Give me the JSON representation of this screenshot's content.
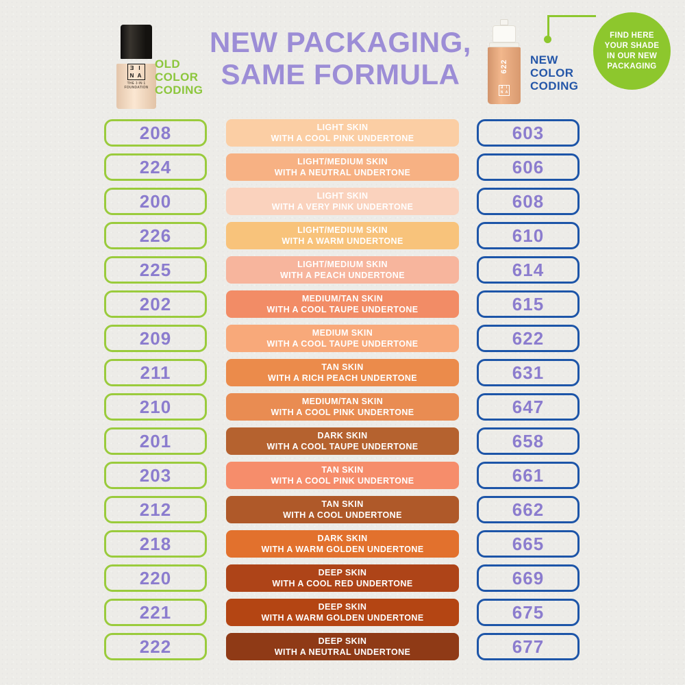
{
  "header": {
    "title_line1": "NEW PACKAGING,",
    "title_line2": "SAME FORMULA",
    "title_color": "#9C8DD6",
    "old_label_line1": "OLD",
    "old_label_line2": "COLOR",
    "old_label_line3": "CODING",
    "old_label_color": "#8CC63C",
    "new_label_line1": "NEW",
    "new_label_line2": "COLOR",
    "new_label_line3": "CODING",
    "new_label_color": "#2456A8",
    "badge": {
      "line1": "FIND HERE",
      "line2": "YOUR SHADE",
      "line3": "IN OUR NEW",
      "line4": "PACKAGING",
      "background": "#8DC72D",
      "text_color": "#FFFFFF"
    },
    "old_bottle": {
      "brand": "3INA",
      "logo_cells": {
        "a": "Ǝ",
        "b": "I",
        "c": "N",
        "d": "A"
      },
      "label_line1": "THE 3 IN 1",
      "label_line2": "FOUNDATION"
    },
    "new_bottle": {
      "brand": "3INA",
      "shade": "622",
      "logo_cells": {
        "a": "Ǝ",
        "b": "I",
        "c": "N",
        "d": "A"
      }
    }
  },
  "table": {
    "old_code_border_color": "#9ACB3C",
    "new_code_border_color": "#1D55A8",
    "code_text_color": "#8B7CCE",
    "rows": [
      {
        "old": "208",
        "desc_line1": "LIGHT SKIN",
        "desc_line2": "WITH A COOL PINK UNDERTONE",
        "swatch": "#FBCEA4",
        "new": "603"
      },
      {
        "old": "224",
        "desc_line1": "LIGHT/MEDIUM SKIN",
        "desc_line2": "WITH A NEUTRAL UNDERTONE",
        "swatch": "#F7B183",
        "new": "606"
      },
      {
        "old": "200",
        "desc_line1": "LIGHT SKIN",
        "desc_line2": "WITH A VERY PINK UNDERTONE",
        "swatch": "#FAD2BD",
        "new": "608"
      },
      {
        "old": "226",
        "desc_line1": "LIGHT/MEDIUM SKIN",
        "desc_line2": "WITH A WARM UNDERTONE",
        "swatch": "#F8C37B",
        "new": "610"
      },
      {
        "old": "225",
        "desc_line1": "LIGHT/MEDIUM SKIN",
        "desc_line2": "WITH A PEACH UNDERTONE",
        "swatch": "#F7B59D",
        "new": "614"
      },
      {
        "old": "202",
        "desc_line1": "MEDIUM/TAN SKIN",
        "desc_line2": "WITH A COOL TAUPE UNDERTONE",
        "swatch": "#F28C66",
        "new": "615"
      },
      {
        "old": "209",
        "desc_line1": "MEDIUM SKIN",
        "desc_line2": "WITH A COOL TAUPE UNDERTONE",
        "swatch": "#F8A97A",
        "new": "622"
      },
      {
        "old": "211",
        "desc_line1": "TAN SKIN",
        "desc_line2": "WITH A RICH PEACH UNDERTONE",
        "swatch": "#EB8B4B",
        "new": "631"
      },
      {
        "old": "210",
        "desc_line1": "MEDIUM/TAN SKIN",
        "desc_line2": "WITH A COOL PINK UNDERTONE",
        "swatch": "#E98C52",
        "new": "647"
      },
      {
        "old": "201",
        "desc_line1": "DARK SKIN",
        "desc_line2": "WITH A COOL TAUPE UNDERTONE",
        "swatch": "#B5622F",
        "new": "658"
      },
      {
        "old": "203",
        "desc_line1": "TAN SKIN",
        "desc_line2": "WITH A COOL PINK UNDERTONE",
        "swatch": "#F68D6B",
        "new": "661"
      },
      {
        "old": "212",
        "desc_line1": "TAN SKIN",
        "desc_line2": "WITH A COOL UNDERTONE",
        "swatch": "#AF5929",
        "new": "662"
      },
      {
        "old": "218",
        "desc_line1": "DARK SKIN",
        "desc_line2": "WITH A WARM GOLDEN UNDERTONE",
        "swatch": "#E2712D",
        "new": "665"
      },
      {
        "old": "220",
        "desc_line1": "DEEP SKIN",
        "desc_line2": "WITH A COOL RED UNDERTONE",
        "swatch": "#AE4418",
        "new": "669"
      },
      {
        "old": "221",
        "desc_line1": "DEEP SKIN",
        "desc_line2": "WITH A WARM GOLDEN UNDERTONE",
        "swatch": "#B44513",
        "new": "675"
      },
      {
        "old": "222",
        "desc_line1": "DEEP SKIN",
        "desc_line2": "WITH A NEUTRAL UNDERTONE",
        "swatch": "#8F3A16",
        "new": "677"
      }
    ]
  }
}
